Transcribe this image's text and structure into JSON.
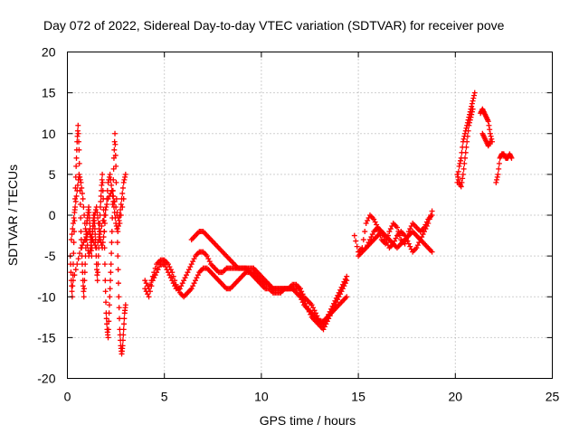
{
  "chart_data": {
    "type": "scatter",
    "title": "Day 072 of 2022, Sidereal Day-to-day VTEC variation (SDTVAR) for receiver pove",
    "xlabel": "GPS time / hours",
    "ylabel": "SDTVAR / TECUs",
    "xlim": [
      0,
      25
    ],
    "ylim": [
      -20,
      20
    ],
    "xticks": [
      0,
      5,
      10,
      15,
      20,
      25
    ],
    "yticks": [
      -20,
      -15,
      -10,
      -5,
      0,
      5,
      10,
      15,
      20
    ],
    "xtick_labels": [
      "0",
      "5",
      "10",
      "15",
      "20",
      "25"
    ],
    "ytick_labels": [
      "-20",
      "-15",
      "-10",
      "-5",
      "0",
      "5",
      "10",
      "15",
      "20"
    ],
    "grid": true,
    "marker": "+",
    "series": [
      {
        "name": "SDTVAR",
        "color": "#ff0000",
        "tracks": [
          {
            "x": [
              0.15,
              0.2,
              0.25,
              0.3,
              0.35,
              0.4,
              0.45,
              0.5,
              0.55,
              0.6,
              0.65,
              0.7,
              0.75,
              0.8,
              0.85,
              0.9,
              0.95,
              1.0,
              1.05,
              1.1,
              1.15,
              1.2,
              1.25,
              1.3,
              1.35,
              1.4,
              1.45,
              1.5,
              1.55,
              1.6,
              1.65,
              1.7,
              1.75,
              1.8,
              1.85,
              1.9,
              1.95,
              2.0,
              2.05,
              2.1,
              2.15,
              2.2,
              2.25,
              2.3,
              2.35,
              2.4,
              2.45,
              2.5,
              2.55,
              2.6,
              2.65,
              2.7,
              2.75,
              2.8,
              2.85,
              2.9,
              2.95,
              3.0
            ],
            "y": [
              -5,
              -8,
              -10,
              -6,
              -2,
              2,
              6,
              9,
              11,
              8,
              3,
              -2,
              -5,
              -8,
              -10,
              -7,
              -4,
              -1,
              0,
              1,
              -1,
              -3,
              -5,
              -2,
              0,
              -1,
              -3,
              -6,
              -8,
              -5,
              -2,
              1,
              3,
              5,
              2,
              -2,
              -8,
              -12,
              -14,
              -15,
              -12,
              -9,
              -6,
              -2,
              3,
              7,
              10,
              6,
              0,
              -5,
              -10,
              -14,
              -16,
              -17,
              -16,
              -14,
              -12,
              -11
            ]
          },
          {
            "x": [
              0.2,
              0.3,
              0.4,
              0.5,
              0.6,
              0.7,
              0.8,
              0.9,
              1.0,
              1.1,
              1.2,
              1.3,
              1.4,
              1.5,
              1.6,
              1.7,
              1.8,
              1.9,
              2.0,
              2.1,
              2.2,
              2.3,
              2.4,
              2.5,
              2.6,
              2.7,
              2.8,
              2.9,
              3.0
            ],
            "y": [
              -3,
              -1,
              1,
              3,
              5,
              4,
              2,
              -1,
              -3,
              -5,
              -4,
              -2,
              0,
              1,
              -1,
              -3,
              -4,
              -2,
              1,
              4,
              5,
              3,
              1,
              -1,
              -2,
              0,
              2,
              4,
              5
            ]
          },
          {
            "x": [
              0.3,
              0.5,
              0.7,
              0.9,
              1.1,
              1.3,
              1.5,
              1.7,
              1.9,
              2.1,
              2.3,
              2.5,
              2.7,
              2.9
            ],
            "y": [
              -8,
              -6,
              -4,
              -3,
              -2,
              -3,
              -4,
              -2,
              0,
              2,
              3,
              1,
              -1,
              2
            ]
          },
          {
            "x": [
              4.0,
              4.2,
              4.4,
              4.6,
              4.8,
              5.0,
              5.2,
              5.4,
              5.6,
              5.8,
              6.0,
              6.2,
              6.4,
              6.6,
              6.8,
              7.0,
              7.2,
              7.4,
              7.6,
              7.8,
              8.0,
              8.2,
              8.4,
              8.6,
              8.8,
              9.0,
              9.2,
              9.4,
              9.6,
              9.8,
              10.0,
              10.2,
              10.4,
              10.6,
              10.8,
              11.0,
              11.2,
              11.4,
              11.6,
              11.8,
              12.0
            ],
            "y": [
              -9,
              -10,
              -8,
              -7,
              -6,
              -6,
              -7,
              -8,
              -9,
              -9,
              -8,
              -7,
              -6,
              -5,
              -4.5,
              -4.5,
              -5,
              -6,
              -6.5,
              -7,
              -7,
              -6.5,
              -6.5,
              -6.5,
              -6.5,
              -6.5,
              -6.5,
              -7,
              -7,
              -7.5,
              -8,
              -8.5,
              -8.5,
              -9,
              -9,
              -9,
              -9,
              -9,
              -8.5,
              -8.5,
              -9
            ]
          },
          {
            "x": [
              4.0,
              4.2,
              4.4,
              4.6,
              4.8,
              5.0,
              5.2,
              5.4,
              5.6,
              5.8,
              6.0,
              6.2,
              6.4,
              6.6,
              6.8,
              7.0,
              7.2,
              7.4,
              7.6,
              7.8,
              8.0,
              8.2,
              8.4,
              8.6,
              8.8,
              9.0,
              9.2,
              9.4,
              9.6,
              9.8,
              10.0,
              10.2,
              10.4,
              10.6,
              10.8,
              11.0,
              11.2,
              11.4,
              11.6,
              11.8,
              12.0
            ],
            "y": [
              -8,
              -9,
              -7.5,
              -6,
              -5.5,
              -5.5,
              -6,
              -7,
              -8.5,
              -9.5,
              -10,
              -9.5,
              -9,
              -8,
              -7,
              -6.5,
              -6.5,
              -7,
              -7.5,
              -8,
              -8.5,
              -9,
              -9,
              -8.5,
              -8,
              -7.5,
              -7,
              -7,
              -7.5,
              -8,
              -8.5,
              -9,
              -9,
              -9.5,
              -9.5,
              -9.5,
              -9,
              -9,
              -9,
              -9.5,
              -10
            ]
          },
          {
            "x": [
              6.4,
              6.6,
              6.8,
              7.0,
              7.2,
              7.4,
              7.6,
              7.8,
              8.0,
              8.2,
              8.4,
              8.6,
              8.8,
              9.0,
              9.2,
              9.4,
              9.6,
              9.8,
              10.0,
              10.2,
              10.4,
              10.6,
              10.8,
              11.0,
              11.2,
              11.4,
              11.6,
              11.8,
              12.0
            ],
            "y": [
              -3,
              -2.5,
              -2,
              -2,
              -2.5,
              -3,
              -3.5,
              -4,
              -4.5,
              -5,
              -5.5,
              -6,
              -6.5,
              -6.5,
              -6.5,
              -6.5,
              -6.5,
              -7,
              -7.5,
              -8,
              -8.5,
              -9,
              -9,
              -9,
              -9,
              -9,
              -9,
              -9,
              -9
            ]
          },
          {
            "x": [
              12.0,
              12.2,
              12.4,
              12.6,
              12.8,
              13.0,
              13.2,
              13.4,
              13.6,
              13.8,
              14.0,
              14.2,
              14.4
            ],
            "y": [
              -9,
              -10,
              -10.5,
              -11,
              -12,
              -13,
              -13.5,
              -12.5,
              -11.5,
              -10.5,
              -9.5,
              -8.5,
              -7.5
            ]
          },
          {
            "x": [
              12.0,
              12.2,
              12.4,
              12.6,
              12.8,
              13.0,
              13.2,
              13.4,
              13.6,
              13.8,
              14.0,
              14.2,
              14.4
            ],
            "y": [
              -9.5,
              -10.5,
              -11.5,
              -12.5,
              -13,
              -13.5,
              -14,
              -13,
              -12,
              -11,
              -10,
              -9,
              -8
            ]
          },
          {
            "x": [
              12.0,
              12.2,
              12.4,
              12.6,
              12.8,
              13.0,
              13.2,
              13.4,
              13.6,
              13.8,
              14.0,
              14.2,
              14.4
            ],
            "y": [
              -10,
              -11,
              -11.5,
              -12,
              -12.5,
              -13,
              -13,
              -12.5,
              -12,
              -11.5,
              -11,
              -10.5,
              -10
            ]
          },
          {
            "x": [
              14.8,
              15.0,
              15.2,
              15.4,
              15.6,
              15.8,
              16.0,
              16.2,
              16.4,
              16.6,
              16.8,
              17.0,
              17.2,
              17.4,
              17.6,
              17.8,
              18.0,
              18.2,
              18.4,
              18.6,
              18.8
            ],
            "y": [
              -2.5,
              -4.5,
              -4,
              -1,
              0,
              -0.5,
              -1.5,
              -3,
              -3.5,
              -2,
              -1,
              -1.5,
              -3,
              -3.5,
              -2,
              -1,
              -1.5,
              -2,
              -1.5,
              -0.5,
              0
            ]
          },
          {
            "x": [
              15.0,
              15.2,
              15.4,
              15.6,
              15.8,
              16.0,
              16.2,
              16.4,
              16.6,
              16.8,
              17.0,
              17.2,
              17.4,
              17.6,
              17.8,
              18.0,
              18.2,
              18.4,
              18.6,
              18.8
            ],
            "y": [
              -5,
              -4.5,
              -4,
              -3.5,
              -3,
              -2.5,
              -2,
              -2.5,
              -3,
              -3.5,
              -4,
              -3.5,
              -3,
              -2.5,
              -2,
              -2.5,
              -3,
              -3.5,
              -4,
              -4.5
            ]
          },
          {
            "x": [
              15.4,
              15.6,
              15.8,
              16.0,
              16.2,
              16.4,
              16.6,
              16.8,
              17.0,
              17.2,
              17.4,
              17.6,
              17.8,
              18.0,
              18.2,
              18.4,
              18.6,
              18.8
            ],
            "y": [
              -4,
              -3,
              -2,
              -1.5,
              -2,
              -3,
              -4,
              -3.5,
              -2.5,
              -2,
              -2.5,
              -3.5,
              -4.5,
              -4,
              -3,
              -2,
              -1,
              0.5
            ]
          },
          {
            "x": [
              20.1,
              20.2,
              20.3,
              20.4,
              20.5,
              20.6,
              20.7,
              20.8,
              20.9,
              21.0
            ],
            "y": [
              4,
              6,
              7,
              9,
              10,
              11,
              12,
              13,
              14,
              15
            ]
          },
          {
            "x": [
              20.1,
              20.2,
              20.3,
              20.4,
              20.5,
              20.6,
              20.7,
              20.8,
              20.9
            ],
            "y": [
              5,
              4,
              3.5,
              5,
              7,
              9,
              11,
              12,
              13
            ]
          },
          {
            "x": [
              21.3,
              21.4,
              21.5,
              21.6,
              21.7,
              21.8,
              21.9
            ],
            "y": [
              12.5,
              13,
              12.5,
              12,
              11.5,
              10,
              9
            ]
          },
          {
            "x": [
              21.4,
              21.5,
              21.6,
              21.7,
              21.8
            ],
            "y": [
              10,
              9.5,
              9,
              8.5,
              9
            ]
          },
          {
            "x": [
              22.1,
              22.2,
              22.3,
              22.4,
              22.5,
              22.6,
              22.7,
              22.8,
              22.9
            ],
            "y": [
              4,
              5,
              7,
              7.5,
              7.5,
              7,
              7,
              7.5,
              7
            ]
          }
        ]
      }
    ]
  }
}
